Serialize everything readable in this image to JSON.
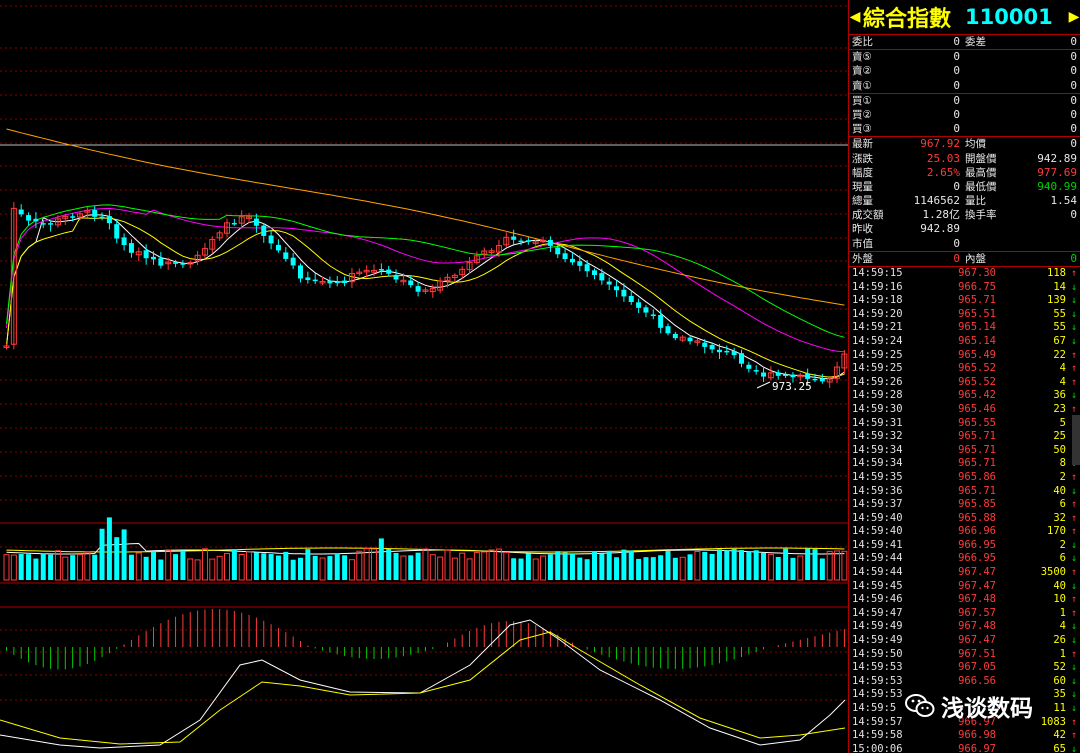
{
  "header": {
    "name": "綜合指數",
    "code": "110001"
  },
  "order_book": {
    "ratio": {
      "label": "委比",
      "value": "0",
      "label2": "委差",
      "value2": "0"
    },
    "asks": [
      {
        "label": "賣⑤",
        "p": "0",
        "v": "0"
      },
      {
        "label": "賣②",
        "p": "0",
        "v": "0"
      },
      {
        "label": "賣①",
        "p": "0",
        "v": "0"
      }
    ],
    "bids": [
      {
        "label": "買①",
        "p": "0",
        "v": "0"
      },
      {
        "label": "買②",
        "p": "0",
        "v": "0"
      },
      {
        "label": "買③",
        "p": "0",
        "v": "0"
      }
    ]
  },
  "quote": [
    {
      "l1": "最新",
      "v1": "967.92",
      "c1": "red",
      "l2": "均價",
      "v2": "0",
      "c2": "white"
    },
    {
      "l1": "漲跌",
      "v1": "25.03",
      "c1": "red",
      "l2": "開盤價",
      "v2": "942.89",
      "c2": "white"
    },
    {
      "l1": "幅度",
      "v1": "2.65%",
      "c1": "red",
      "l2": "最高價",
      "v2": "977.69",
      "c2": "red"
    },
    {
      "l1": "現量",
      "v1": "0",
      "c1": "white",
      "l2": "最低價",
      "v2": "940.99",
      "c2": "green"
    },
    {
      "l1": "總量",
      "v1": "1146562",
      "c1": "white",
      "l2": "量比",
      "v2": "1.54",
      "c2": "white"
    },
    {
      "l1": "成交額",
      "v1": "1.28亿",
      "c1": "white",
      "l2": "換手率",
      "v2": "0",
      "c2": "white"
    },
    {
      "l1": "昨收",
      "v1": "942.89",
      "c1": "white",
      "l2": "",
      "v2": "",
      "c2": "white"
    },
    {
      "l1": "市值",
      "v1": "0",
      "c1": "white",
      "l2": "",
      "v2": "",
      "c2": "white"
    }
  ],
  "outer_inner": {
    "l1": "外盤",
    "v1": "0",
    "l2": "內盤",
    "v2": "0"
  },
  "ticks": [
    {
      "t": "14:59:15",
      "p": "967.30",
      "v": "118",
      "d": "up"
    },
    {
      "t": "14:59:16",
      "p": "966.75",
      "v": "14",
      "d": "down"
    },
    {
      "t": "14:59:18",
      "p": "965.71",
      "v": "139",
      "d": "down"
    },
    {
      "t": "14:59:20",
      "p": "965.51",
      "v": "55",
      "d": "down"
    },
    {
      "t": "14:59:21",
      "p": "965.14",
      "v": "55",
      "d": "down"
    },
    {
      "t": "14:59:24",
      "p": "965.14",
      "v": "67",
      "d": "down"
    },
    {
      "t": "14:59:25",
      "p": "965.49",
      "v": "22",
      "d": "up"
    },
    {
      "t": "14:59:25",
      "p": "965.52",
      "v": "4",
      "d": "up"
    },
    {
      "t": "14:59:26",
      "p": "965.52",
      "v": "4",
      "d": "up"
    },
    {
      "t": "14:59:28",
      "p": "965.42",
      "v": "36",
      "d": "down"
    },
    {
      "t": "14:59:30",
      "p": "965.46",
      "v": "23",
      "d": "up"
    },
    {
      "t": "14:59:31",
      "p": "965.55",
      "v": "5",
      "d": "up"
    },
    {
      "t": "14:59:32",
      "p": "965.71",
      "v": "25",
      "d": "up"
    },
    {
      "t": "14:59:34",
      "p": "965.71",
      "v": "50",
      "d": "down"
    },
    {
      "t": "14:59:34",
      "p": "965.71",
      "v": "8",
      "d": "down"
    },
    {
      "t": "14:59:35",
      "p": "965.86",
      "v": "2",
      "d": "up"
    },
    {
      "t": "14:59:36",
      "p": "965.71",
      "v": "40",
      "d": "down"
    },
    {
      "t": "14:59:37",
      "p": "965.85",
      "v": "6",
      "d": "up"
    },
    {
      "t": "14:59:40",
      "p": "965.88",
      "v": "32",
      "d": "up"
    },
    {
      "t": "14:59:40",
      "p": "966.96",
      "v": "170",
      "d": "up"
    },
    {
      "t": "14:59:41",
      "p": "966.95",
      "v": "2",
      "d": "down"
    },
    {
      "t": "14:59:44",
      "p": "966.95",
      "v": "6",
      "d": "down"
    },
    {
      "t": "14:59:44",
      "p": "967.47",
      "v": "3500",
      "d": "up"
    },
    {
      "t": "14:59:45",
      "p": "967.47",
      "v": "40",
      "d": "down"
    },
    {
      "t": "14:59:46",
      "p": "967.48",
      "v": "10",
      "d": "up"
    },
    {
      "t": "14:59:47",
      "p": "967.57",
      "v": "1",
      "d": "up"
    },
    {
      "t": "14:59:49",
      "p": "967.48",
      "v": "4",
      "d": "down"
    },
    {
      "t": "14:59:49",
      "p": "967.47",
      "v": "26",
      "d": "down"
    },
    {
      "t": "14:59:50",
      "p": "967.51",
      "v": "1",
      "d": "up"
    },
    {
      "t": "14:59:53",
      "p": "967.05",
      "v": "52",
      "d": "down"
    },
    {
      "t": "14:59:53",
      "p": "966.56",
      "v": "60",
      "d": "down"
    },
    {
      "t": "14:59:53",
      "p": "",
      "v": "35",
      "d": "down"
    },
    {
      "t": "14:59:5",
      "p": "",
      "v": "11",
      "d": "down"
    },
    {
      "t": "14:59:57",
      "p": "966.97",
      "v": "1083",
      "d": "up"
    },
    {
      "t": "14:59:58",
      "p": "966.98",
      "v": "42",
      "d": "up"
    },
    {
      "t": "15:00:06",
      "p": "966.97",
      "v": "65",
      "d": "down"
    }
  ],
  "chart": {
    "low_marker": "973.25",
    "colors": {
      "up": "#ff3b3b",
      "down": "#00ffff",
      "ma5": "#ffffff",
      "ma10": "#ffff00",
      "ma20": "#ff00ff",
      "ma30": "#00ff00",
      "ma60": "#ffa500"
    }
  },
  "watermark": "浅谈数码",
  "icons": {
    "left_arrow": "◀",
    "right_arrow": "▶",
    "up_arrow": "↑",
    "down_arrow": "↓"
  }
}
